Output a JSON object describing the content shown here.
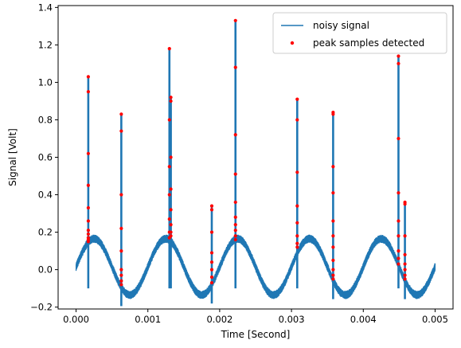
{
  "chart_data": {
    "type": "line",
    "title": "",
    "xlabel": "Time [Second]",
    "ylabel": "Signal [Volt]",
    "xlim": [
      -0.00025,
      0.00525
    ],
    "ylim": [
      -0.21,
      1.41
    ],
    "x_ticks": [
      0.0,
      0.001,
      0.002,
      0.003,
      0.004,
      0.005
    ],
    "x_tick_labels": [
      "0.000",
      "0.001",
      "0.002",
      "0.003",
      "0.004",
      "0.005"
    ],
    "y_ticks": [
      -0.2,
      0.0,
      0.2,
      0.4,
      0.6,
      0.8,
      1.0,
      1.2,
      1.4
    ],
    "y_tick_labels": [
      "−0.2",
      "0.0",
      "0.2",
      "0.4",
      "0.6",
      "0.8",
      "1.0",
      "1.2",
      "1.4"
    ],
    "grid": false,
    "legend_position": "top-right",
    "colors": {
      "signal": "#1f77b4",
      "peaks": "#ff0000"
    },
    "series": [
      {
        "name": "noisy signal",
        "kind": "line",
        "baseline": {
          "amplitude": 0.15,
          "frequency_hz": 1000,
          "offset": 0.015,
          "start": 0.0,
          "end": 0.005
        },
        "spikes": [
          {
            "x": 0.00017,
            "peak": 1.03
          },
          {
            "x": 0.00063,
            "peak": 0.83
          },
          {
            "x": 0.0013,
            "peak": 1.18
          },
          {
            "x": 0.00132,
            "peak": 0.92
          },
          {
            "x": 0.00189,
            "peak": 0.34
          },
          {
            "x": 0.00222,
            "peak": 1.33
          },
          {
            "x": 0.00308,
            "peak": 0.91
          },
          {
            "x": 0.00358,
            "peak": 0.84
          },
          {
            "x": 0.00449,
            "peak": 1.14
          },
          {
            "x": 0.00458,
            "peak": 0.36
          }
        ]
      },
      {
        "name": "peak samples detected",
        "kind": "scatter",
        "points": [
          [
            0.00017,
            1.03
          ],
          [
            0.00017,
            0.95
          ],
          [
            0.00017,
            0.62
          ],
          [
            0.00017,
            0.45
          ],
          [
            0.00017,
            0.33
          ],
          [
            0.00017,
            0.26
          ],
          [
            0.00017,
            0.21
          ],
          [
            0.00017,
            0.19
          ],
          [
            0.00017,
            0.17
          ],
          [
            0.00017,
            0.16
          ],
          [
            0.00017,
            0.15
          ],
          [
            0.00063,
            0.83
          ],
          [
            0.00063,
            0.74
          ],
          [
            0.00063,
            0.4
          ],
          [
            0.00063,
            0.22
          ],
          [
            0.00063,
            0.1
          ],
          [
            0.00063,
            0.0
          ],
          [
            0.00063,
            -0.03
          ],
          [
            0.00063,
            -0.06
          ],
          [
            0.00063,
            -0.08
          ],
          [
            0.0013,
            1.18
          ],
          [
            0.0013,
            0.8
          ],
          [
            0.0013,
            0.55
          ],
          [
            0.0013,
            0.4
          ],
          [
            0.0013,
            0.27
          ],
          [
            0.0013,
            0.2
          ],
          [
            0.0013,
            0.17
          ],
          [
            0.00132,
            0.92
          ],
          [
            0.00132,
            0.9
          ],
          [
            0.00132,
            0.6
          ],
          [
            0.00132,
            0.43
          ],
          [
            0.00132,
            0.32
          ],
          [
            0.00132,
            0.24
          ],
          [
            0.00132,
            0.2
          ],
          [
            0.00132,
            0.18
          ],
          [
            0.00189,
            0.34
          ],
          [
            0.00189,
            0.32
          ],
          [
            0.00189,
            0.2
          ],
          [
            0.00189,
            0.09
          ],
          [
            0.00189,
            0.04
          ],
          [
            0.00189,
            0.0
          ],
          [
            0.00189,
            -0.04
          ],
          [
            0.00189,
            -0.07
          ],
          [
            0.00222,
            1.33
          ],
          [
            0.00222,
            1.08
          ],
          [
            0.00222,
            0.72
          ],
          [
            0.00222,
            0.51
          ],
          [
            0.00222,
            0.36
          ],
          [
            0.00222,
            0.28
          ],
          [
            0.00222,
            0.24
          ],
          [
            0.00222,
            0.21
          ],
          [
            0.00222,
            0.18
          ],
          [
            0.00222,
            0.16
          ],
          [
            0.00308,
            0.91
          ],
          [
            0.00308,
            0.8
          ],
          [
            0.00308,
            0.52
          ],
          [
            0.00308,
            0.34
          ],
          [
            0.00308,
            0.25
          ],
          [
            0.00308,
            0.18
          ],
          [
            0.00308,
            0.14
          ],
          [
            0.00308,
            0.12
          ],
          [
            0.00358,
            0.84
          ],
          [
            0.00358,
            0.83
          ],
          [
            0.00358,
            0.55
          ],
          [
            0.00358,
            0.41
          ],
          [
            0.00358,
            0.26
          ],
          [
            0.00358,
            0.18
          ],
          [
            0.00358,
            0.12
          ],
          [
            0.00358,
            0.05
          ],
          [
            0.00358,
            0.0
          ],
          [
            0.00358,
            -0.03
          ],
          [
            0.00358,
            -0.05
          ],
          [
            0.00449,
            1.14
          ],
          [
            0.00449,
            1.1
          ],
          [
            0.00449,
            0.7
          ],
          [
            0.00449,
            0.41
          ],
          [
            0.00449,
            0.26
          ],
          [
            0.00449,
            0.18
          ],
          [
            0.00449,
            0.1
          ],
          [
            0.00449,
            0.06
          ],
          [
            0.00449,
            0.03
          ],
          [
            0.00458,
            0.36
          ],
          [
            0.00458,
            0.35
          ],
          [
            0.00458,
            0.18
          ],
          [
            0.00458,
            0.08
          ],
          [
            0.00458,
            0.03
          ],
          [
            0.00458,
            0.0
          ],
          [
            0.00458,
            -0.03
          ],
          [
            0.00458,
            -0.05
          ]
        ]
      }
    ]
  }
}
